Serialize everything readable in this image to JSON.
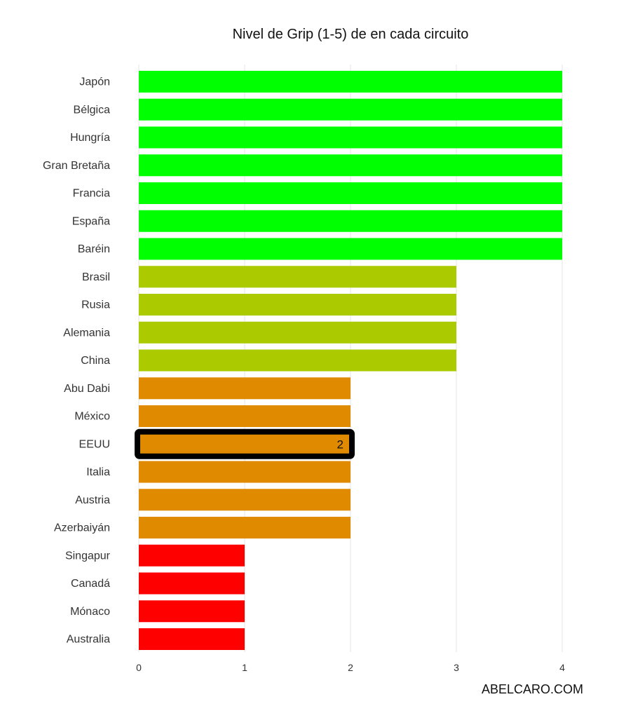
{
  "watermark": "ABELCARO.COM",
  "chart_data": {
    "type": "bar",
    "orientation": "horizontal",
    "title": "Nivel de Grip (1-5) de en cada circuito",
    "xlabel": "",
    "ylabel": "",
    "xlim": [
      0,
      4
    ],
    "x_ticks": [
      "0",
      "1",
      "2",
      "3",
      "4"
    ],
    "grid": "vertical",
    "legend": "none",
    "categories": [
      "Japón",
      "Bélgica",
      "Hungría",
      "Gran Bretaña",
      "Francia",
      "España",
      "Baréin",
      "Brasil",
      "Rusia",
      "Alemania",
      "China",
      "Abu Dabi",
      "México",
      "EEUU",
      "Italia",
      "Austria",
      "Azerbaiyán",
      "Singapur",
      "Canadá",
      "Mónaco",
      "Australia"
    ],
    "values": [
      4,
      4,
      4,
      4,
      4,
      4,
      4,
      3,
      3,
      3,
      3,
      2,
      2,
      2,
      2,
      2,
      2,
      1,
      1,
      1,
      1
    ],
    "colors": {
      "4": "#00ff00",
      "3": "#abcb00",
      "2": "#e08a00",
      "1": "#ff0000"
    },
    "highlight": {
      "category": "EEUU",
      "label": "2",
      "outline_color": "#000000"
    },
    "gridline_color": "#e6e6e6"
  }
}
